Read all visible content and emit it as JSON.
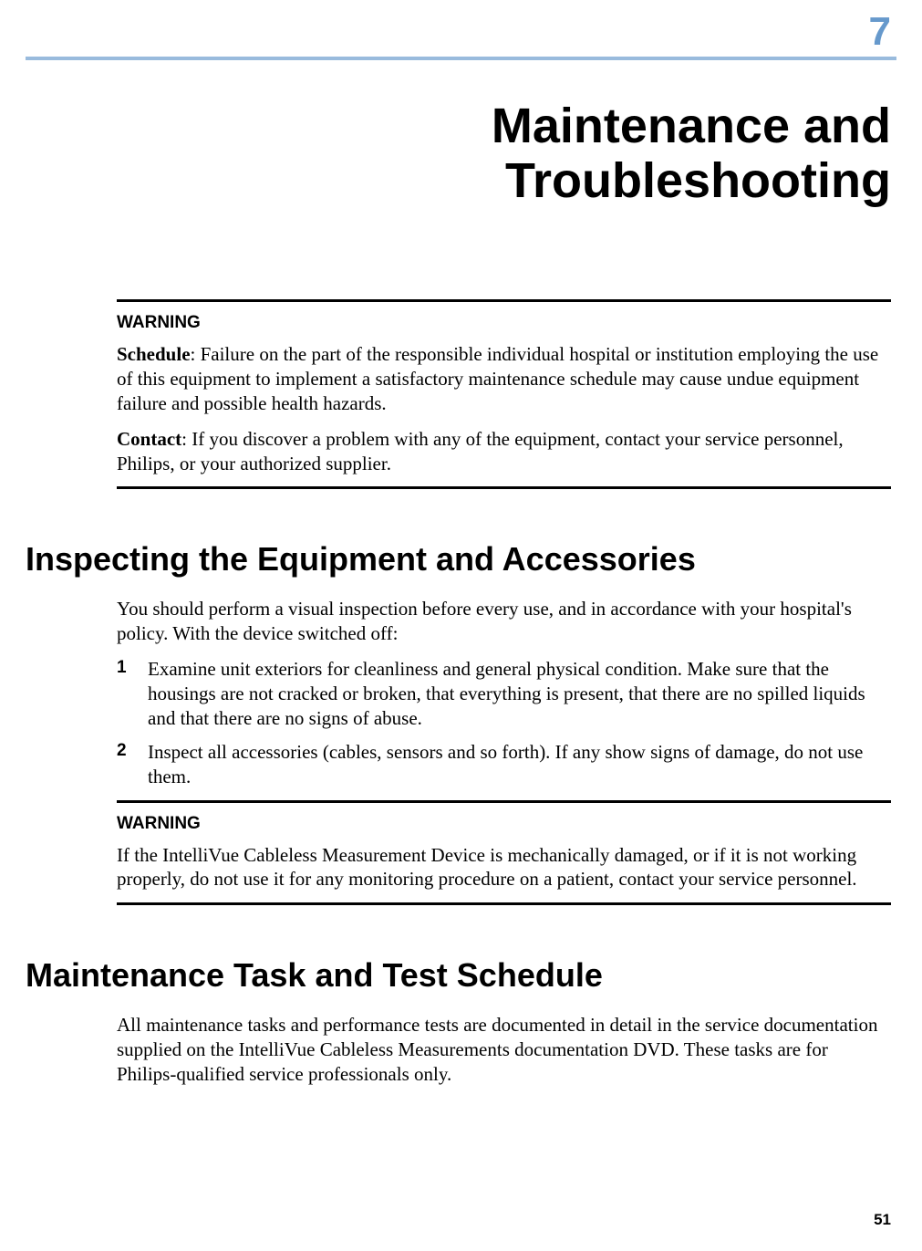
{
  "colors": {
    "chapter_number": "#6699cc",
    "top_rule": "#99bbdd",
    "text": "#000000",
    "background": "#ffffff",
    "warn_rule": "#000000"
  },
  "typography": {
    "chapter_number_fontsize": 44,
    "chapter_title_fontsize": 54,
    "h1_fontsize": 36,
    "body_fontsize": 21,
    "warning_label_fontsize": 19,
    "list_num_fontsize": 19,
    "page_number_fontsize": 17,
    "heading_font": "Arial",
    "body_font": "Garamond"
  },
  "chapter": {
    "number": "7",
    "title_line1": "Maintenance and",
    "title_line2": "Troubleshooting"
  },
  "warning1": {
    "label": "WARNING",
    "p1_bold": "Schedule",
    "p1_rest": ": Failure on the part of the responsible individual hospital or institution employing the use of this equipment to implement a satisfactory maintenance schedule may cause undue equipment failure and possible health hazards.",
    "p2_bold": "Contact",
    "p2_rest": ": If you discover a problem with any of the equipment, contact your service personnel, Philips, or your authorized supplier."
  },
  "section1": {
    "heading": "Inspecting the Equipment and Accessories",
    "intro": "You should perform a visual inspection before every use, and in accordance with your hospital's policy. With the device switched off:",
    "items": [
      {
        "num": "1",
        "text": "Examine unit exteriors for cleanliness and general physical condition. Make sure that the housings are not cracked or broken, that everything is present, that there are no spilled liquids and that there are no signs of abuse."
      },
      {
        "num": "2",
        "text": "Inspect all accessories (cables, sensors and so forth). If any show signs of damage, do not use them."
      }
    ]
  },
  "warning2": {
    "label": "WARNING",
    "text": "If the IntelliVue Cableless Measurement Device is mechanically damaged, or if it is not working properly, do not use it for any monitoring procedure on a patient, contact your service personnel."
  },
  "section2": {
    "heading": "Maintenance Task and Test Schedule",
    "text": "All maintenance tasks and performance tests are documented in detail in the service documentation supplied on the IntelliVue Cableless Measurements documentation DVD. These tasks are for Philips-qualified service professionals only."
  },
  "page_number": "51"
}
